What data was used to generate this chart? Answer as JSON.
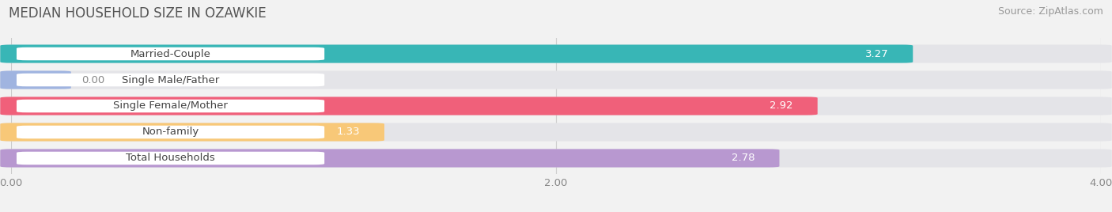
{
  "title": "MEDIAN HOUSEHOLD SIZE IN OZAWKIE",
  "source": "Source: ZipAtlas.com",
  "categories": [
    "Married-Couple",
    "Single Male/Father",
    "Single Female/Mother",
    "Non-family",
    "Total Households"
  ],
  "values": [
    3.27,
    0.0,
    2.92,
    1.33,
    2.78
  ],
  "bar_colors": [
    "#38b6b6",
    "#a0b4e0",
    "#f0607a",
    "#f8c878",
    "#b898d0"
  ],
  "background_color": "#f2f2f2",
  "bar_bg_color": "#e4e4e8",
  "xlim": [
    0,
    4.0
  ],
  "xticks": [
    0.0,
    2.0,
    4.0
  ],
  "xtick_labels": [
    "0.00",
    "2.00",
    "4.00"
  ],
  "title_fontsize": 12,
  "label_fontsize": 9.5,
  "value_fontsize": 9.5,
  "source_fontsize": 9
}
